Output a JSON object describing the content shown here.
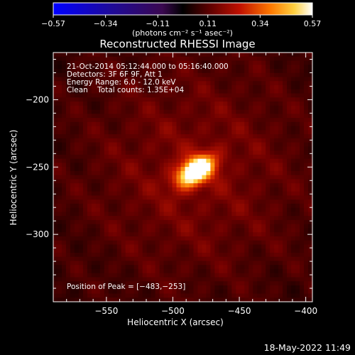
{
  "chart_data": {
    "type": "heatmap",
    "title": "Reconstructed RHESSI Image",
    "xlabel": "Heliocentric X (arcsec)",
    "ylabel": "Heliocentric Y (arcsec)",
    "xlim": [
      -590,
      -395
    ],
    "ylim": [
      -350,
      -165
    ],
    "x_ticks": [
      -550,
      -500,
      -450,
      -400
    ],
    "y_ticks": [
      -200,
      -250,
      -300
    ],
    "x_tick_labels": [
      "−550",
      "−500",
      "−450",
      "−400"
    ],
    "y_tick_labels": [
      "−200",
      "−250",
      "−300"
    ],
    "colorbar": {
      "min": -0.57,
      "max": 0.57,
      "ticks": [
        -0.57,
        -0.34,
        -0.11,
        0.11,
        0.34,
        0.57
      ],
      "tick_labels": [
        "−0.57",
        "−0.34",
        "−0.11",
        "0.11",
        "0.34",
        "0.57"
      ],
      "units_label": "(photons cm⁻² s⁻¹ asec⁻²)"
    },
    "peak": {
      "x": -483,
      "y": -253,
      "value": 0.57
    },
    "annotations": [
      "21-Oct-2014 05:12:44.000 to 05:16:40.000",
      "Detectors: 3F 6F 9F, Att 1",
      "Energy Range: 6.0 - 12.0 keV",
      "Clean    Total counts: 1.35E+04"
    ],
    "peak_label": "Position of Peak = [−483,−253]",
    "grid": false,
    "legend": "none"
  },
  "footer": {
    "date": "18-May-2022 11:49"
  }
}
